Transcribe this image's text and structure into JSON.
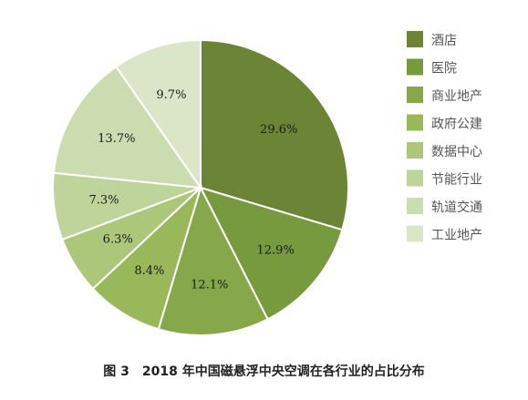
{
  "chart_data": {
    "type": "pie",
    "caption": "图 3　2018 年中国磁悬浮中央空调在各行业的占比分布",
    "categories": [
      "酒店",
      "医院",
      "商业地产",
      "政府公建",
      "数据中心",
      "节能行业",
      "轨道交通",
      "工业地产"
    ],
    "values": [
      29.6,
      12.9,
      12.1,
      8.4,
      6.3,
      7.3,
      13.7,
      9.7
    ],
    "labels": [
      "29.6%",
      "12.9%",
      "12.1%",
      "8.4%",
      "6.3%",
      "7.3%",
      "13.7%",
      "9.7%"
    ],
    "colors": [
      "#6b8435",
      "#789a3e",
      "#87a84a",
      "#98b85a",
      "#adc77a",
      "#bfd49a",
      "#ccdcb1",
      "#dbe6c8"
    ],
    "legend_position": "right"
  }
}
